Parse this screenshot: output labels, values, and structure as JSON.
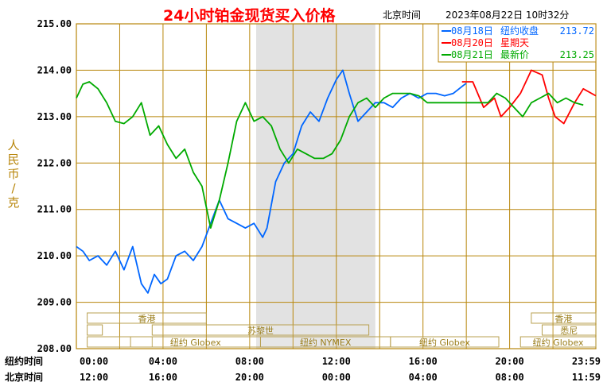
{
  "header": {
    "title": "24小时铂金现货买入价格",
    "beijing_time_label": "北京时间",
    "datetime": "2023年08月22日 10时32分"
  },
  "y_axis_label_chars": [
    "人",
    "民",
    "币",
    "/",
    "克"
  ],
  "legend": [
    {
      "date": "08月18日",
      "desc": "纽约收盘",
      "value": "213.72",
      "color": "#0066ff"
    },
    {
      "date": "08月20日",
      "desc": "星期天",
      "value": "",
      "color": "#ff0000"
    },
    {
      "date": "08月21日",
      "desc": "最新价",
      "value": "213.25",
      "color": "#00aa00"
    }
  ],
  "x_rows": {
    "newyork_label": "纽约时间",
    "beijing_label": "北京时间",
    "newyork_ticks": [
      "00:00",
      "04:00",
      "08:00",
      "12:00",
      "16:00",
      "20:00",
      "23:59"
    ],
    "beijing_ticks": [
      "12:00",
      "16:00",
      "20:00",
      "00:00",
      "04:00",
      "08:00",
      "11:59"
    ]
  },
  "sessions": [
    {
      "label": "香港",
      "row": 0,
      "start": 0.5,
      "end": 6.0
    },
    {
      "label": "",
      "row": 1,
      "start": 0.5,
      "end": 1.2
    },
    {
      "label": "苏黎世",
      "row": 1,
      "start": 3.5,
      "end": 13.5
    },
    {
      "label": "",
      "row": 2,
      "start": 0.5,
      "end": 3.5
    },
    {
      "label": "纽约 Globex",
      "row": 2,
      "start": 2.5,
      "end": 8.5
    },
    {
      "label": "纽约 NYMEX",
      "row": 2,
      "start": 8.5,
      "end": 14.5
    },
    {
      "label": "纽约 Globex",
      "row": 2,
      "start": 14.5,
      "end": 19.5
    },
    {
      "label": "香港",
      "row": 0,
      "start": 21.0,
      "end": 26.0
    },
    {
      "label": "悉尼",
      "row": 1,
      "start": 21.5,
      "end": 26.0
    },
    {
      "label": "纽约 Globex",
      "row": 2,
      "start": 20.5,
      "end": 26.0
    }
  ],
  "colors": {
    "grid": "#b8860b",
    "nymex_shade": "#e2e2e2",
    "series_blue": "#0066ff",
    "series_red": "#ff0000",
    "series_green": "#00aa00"
  },
  "chart_data": {
    "type": "line",
    "title": "24小时铂金现货买入价格",
    "ylabel": "人民币/克",
    "xlabel": "",
    "x_unit": "hours since 00:00 New York time",
    "xlim": [
      0,
      23.98
    ],
    "ylim": [
      208.0,
      215.0
    ],
    "y_ticks": [
      "208.00",
      "209.00",
      "210.00",
      "211.00",
      "212.00",
      "213.00",
      "214.00",
      "215.00"
    ],
    "shaded_region": {
      "label": "纽约 NYMEX",
      "x": [
        8.3,
        13.8
      ]
    },
    "grid": true,
    "legend_position": "top-right",
    "series": [
      {
        "name": "08月18日",
        "color": "#0066ff",
        "x": [
          0,
          0.3,
          0.6,
          1.0,
          1.4,
          1.8,
          2.2,
          2.6,
          3.0,
          3.3,
          3.6,
          3.9,
          4.2,
          4.6,
          5.0,
          5.4,
          5.8,
          6.2,
          6.6,
          6.8,
          7.0,
          7.4,
          7.8,
          8.2,
          8.6,
          8.8,
          9.2,
          9.6,
          10.0,
          10.4,
          10.8,
          11.2,
          11.6,
          12.0,
          12.3,
          12.6,
          13.0,
          13.4,
          13.8,
          14.2,
          14.6,
          15.0,
          15.4,
          15.8,
          16.2,
          16.6,
          17.0,
          17.4,
          17.8,
          18.0
        ],
        "y": [
          210.2,
          210.1,
          209.9,
          210.0,
          209.8,
          210.1,
          209.7,
          210.2,
          209.4,
          209.2,
          209.6,
          209.4,
          209.5,
          210.0,
          210.1,
          209.9,
          210.2,
          210.7,
          211.2,
          211.0,
          210.8,
          210.7,
          210.6,
          210.7,
          210.4,
          210.6,
          211.6,
          212.0,
          212.2,
          212.8,
          213.1,
          212.9,
          213.4,
          213.8,
          214.0,
          213.5,
          212.9,
          213.1,
          213.3,
          213.3,
          213.2,
          213.4,
          213.5,
          213.4,
          213.5,
          213.5,
          213.45,
          213.5,
          213.65,
          213.72
        ]
      },
      {
        "name": "08月20日",
        "color": "#ff0000",
        "x": [
          17.8,
          18.3,
          18.8,
          19.3,
          19.6,
          20.0,
          20.5,
          21.0,
          21.5,
          21.8,
          22.1,
          22.5,
          23.0,
          23.4,
          23.98
        ],
        "y": [
          213.75,
          213.75,
          213.2,
          213.4,
          213.0,
          213.2,
          213.5,
          214.0,
          213.9,
          213.4,
          213.0,
          212.85,
          213.3,
          213.6,
          213.45
        ]
      },
      {
        "name": "08月21日",
        "color": "#00aa00",
        "x": [
          0,
          0.3,
          0.6,
          1.0,
          1.4,
          1.8,
          2.2,
          2.6,
          3.0,
          3.4,
          3.8,
          4.2,
          4.6,
          5.0,
          5.4,
          5.8,
          6.2,
          6.6,
          7.0,
          7.4,
          7.8,
          8.2,
          8.6,
          9.0,
          9.4,
          9.8,
          10.2,
          10.6,
          11.0,
          11.4,
          11.8,
          12.2,
          12.6,
          13.0,
          13.4,
          13.8,
          14.2,
          14.6,
          15.0,
          15.4,
          15.8,
          16.2,
          16.6,
          17.0,
          17.4,
          17.8,
          18.2,
          18.6,
          19.0,
          19.4,
          19.8,
          20.2,
          20.6,
          21.0,
          21.4,
          21.8,
          22.2,
          22.6,
          23.0,
          23.4
        ],
        "y": [
          213.4,
          213.7,
          213.75,
          213.6,
          213.3,
          212.9,
          212.85,
          213.0,
          213.3,
          212.6,
          212.8,
          212.4,
          212.1,
          212.3,
          211.8,
          211.5,
          210.6,
          211.2,
          212.0,
          212.9,
          213.3,
          212.9,
          213.0,
          212.8,
          212.3,
          212.0,
          212.3,
          212.2,
          212.1,
          212.1,
          212.2,
          212.5,
          213.0,
          213.3,
          213.4,
          213.2,
          213.4,
          213.5,
          213.5,
          213.5,
          213.45,
          213.3,
          213.3,
          213.3,
          213.3,
          213.3,
          213.3,
          213.3,
          213.3,
          213.5,
          213.4,
          213.2,
          213.0,
          213.3,
          213.4,
          213.5,
          213.3,
          213.4,
          213.3,
          213.25
        ]
      }
    ]
  }
}
